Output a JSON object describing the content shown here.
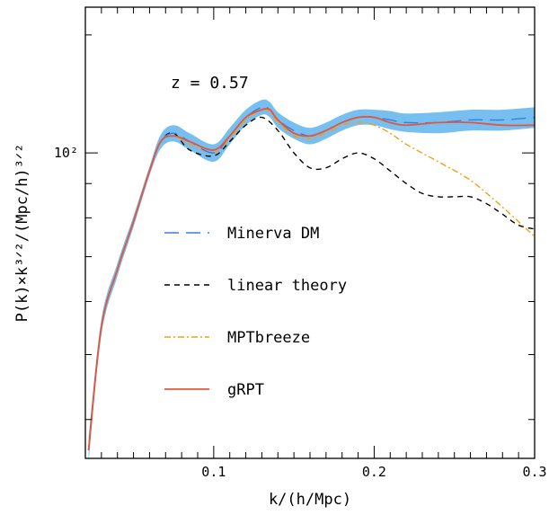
{
  "chart_data": {
    "type": "line",
    "xlabel": "k/(h/Mpc)",
    "ylabel": "P(k)×k³ᐟ²/(Mpc/h)³ᐟ²",
    "annotation": "z = 0.57",
    "xlim": [
      0.02,
      0.3
    ],
    "ylim": [
      35,
      165
    ],
    "yscale": "log",
    "x_ticks": [
      0.1,
      0.2,
      0.3
    ],
    "x_tick_labels": [
      "0.1",
      "0.2",
      "0.3"
    ],
    "y_major_tick": 100,
    "y_major_tick_label": "10²",
    "legend_placement": "center-left",
    "series": [
      {
        "name": "Minerva DM",
        "style": "long-dash",
        "color": "#3b7ddd",
        "band_color": "#76bff0",
        "x": [
          0.022,
          0.03,
          0.04,
          0.05,
          0.06,
          0.067,
          0.075,
          0.085,
          0.1,
          0.11,
          0.12,
          0.13,
          0.135,
          0.14,
          0.15,
          0.16,
          0.17,
          0.18,
          0.19,
          0.2,
          0.21,
          0.22,
          0.24,
          0.26,
          0.28,
          0.3
        ],
        "y": [
          36,
          55,
          67,
          79,
          94,
          104,
          107,
          104,
          100,
          106,
          113,
          117,
          116,
          112,
          108,
          106,
          108,
          111,
          113,
          113,
          112,
          111,
          111,
          112,
          112,
          113
        ],
        "band": [
          1.5,
          1.5,
          1.5,
          1.5,
          1.5,
          2.5,
          3,
          3,
          3,
          3,
          3,
          3,
          3,
          3,
          3,
          3,
          3,
          3,
          3,
          3,
          3.5,
          3.5,
          4,
          4,
          4,
          4
        ]
      },
      {
        "name": "linear theory",
        "style": "short-dash",
        "color": "#000000",
        "x": [
          0.022,
          0.03,
          0.04,
          0.05,
          0.06,
          0.067,
          0.075,
          0.085,
          0.1,
          0.11,
          0.12,
          0.13,
          0.14,
          0.15,
          0.16,
          0.17,
          0.18,
          0.19,
          0.2,
          0.21,
          0.22,
          0.23,
          0.24,
          0.25,
          0.26,
          0.27,
          0.28,
          0.29,
          0.3
        ],
        "y": [
          36,
          55,
          67,
          79,
          94,
          104,
          107,
          101,
          99,
          104,
          110,
          113,
          108,
          100,
          95,
          95,
          98,
          100,
          98,
          94,
          90,
          87,
          86,
          86,
          86,
          84,
          81,
          78,
          77
        ]
      },
      {
        "name": "MPTbreeze",
        "style": "dash-dot",
        "color": "#f0a019",
        "x": [
          0.022,
          0.03,
          0.04,
          0.05,
          0.06,
          0.067,
          0.075,
          0.085,
          0.1,
          0.11,
          0.12,
          0.13,
          0.135,
          0.14,
          0.15,
          0.16,
          0.17,
          0.18,
          0.19,
          0.2,
          0.21,
          0.22,
          0.24,
          0.26,
          0.28,
          0.3
        ],
        "y": [
          36,
          55,
          67,
          79,
          94,
          104,
          106,
          103,
          100,
          105,
          112,
          116,
          115,
          111,
          106,
          105,
          107,
          110,
          111,
          110,
          107,
          103,
          97,
          91,
          83,
          75
        ]
      },
      {
        "name": "gRPT",
        "style": "solid",
        "color": "#e4573a",
        "x": [
          0.022,
          0.03,
          0.04,
          0.05,
          0.06,
          0.067,
          0.075,
          0.085,
          0.1,
          0.11,
          0.12,
          0.13,
          0.135,
          0.14,
          0.15,
          0.16,
          0.17,
          0.18,
          0.19,
          0.2,
          0.21,
          0.22,
          0.24,
          0.26,
          0.28,
          0.3
        ],
        "y": [
          36,
          55,
          67,
          79,
          94,
          104,
          106,
          104,
          101,
          106,
          113,
          116,
          116,
          112,
          107,
          106,
          108,
          111,
          113,
          113,
          111,
          110,
          111,
          111,
          110,
          110
        ]
      }
    ]
  }
}
